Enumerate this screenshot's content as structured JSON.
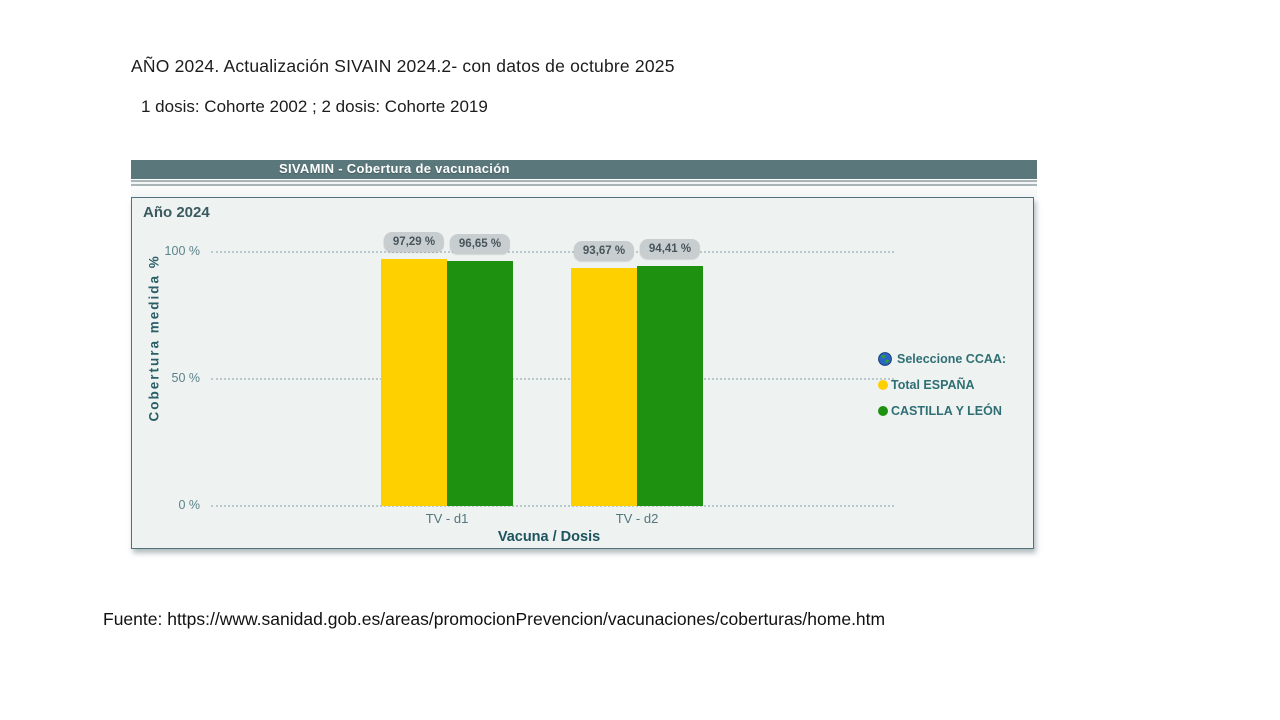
{
  "page": {
    "title": "AÑO 2024. Actualización SIVAIN 2024.2- con datos de octubre 2025",
    "subtitle": "1 dosis: Cohorte 2002 ; 2 dosis: Cohorte 2019",
    "source": "Fuente: https://www.sanidad.gob.es/areas/promocionPrevencion/vacunaciones/coberturas/home.htm"
  },
  "widget": {
    "header_title": "SIVAMIN - Cobertura de vacunación",
    "panel_label": "Año 2024"
  },
  "chart_data": {
    "type": "bar",
    "title": "SIVAMIN - Cobertura de vacunación",
    "panel_label": "Año 2024",
    "categories": [
      "TV - d1",
      "TV - d2"
    ],
    "series": [
      {
        "name": "Total ESPAÑA",
        "color": "#ffd000",
        "values": [
          97.29,
          93.67
        ]
      },
      {
        "name": "CASTILLA Y LEÓN",
        "color": "#1e9110",
        "values": [
          96.65,
          94.41
        ]
      }
    ],
    "value_labels": [
      [
        "97,29 %",
        "96,65 %"
      ],
      [
        "93,67 %",
        "94,41 %"
      ]
    ],
    "xlabel": "Vacuna / Dosis",
    "ylabel": "Cobertura medida %",
    "ylim": [
      0,
      100
    ],
    "yticks": [
      {
        "label": "100 %",
        "value": 100
      },
      {
        "label": "50 %",
        "value": 50
      },
      {
        "label": "0 %",
        "value": 0
      }
    ],
    "grid": "horizontal-dotted",
    "legend": {
      "title": "Seleccione CCAA:",
      "position": "right"
    }
  },
  "colors": {
    "header_bar": "#5a787c",
    "panel_bg": "#eef2f1",
    "yellow_series": "#ffd000",
    "green_series": "#1e9110",
    "badge_bg": "#c8ced0",
    "teal_text": "#1d545f"
  }
}
